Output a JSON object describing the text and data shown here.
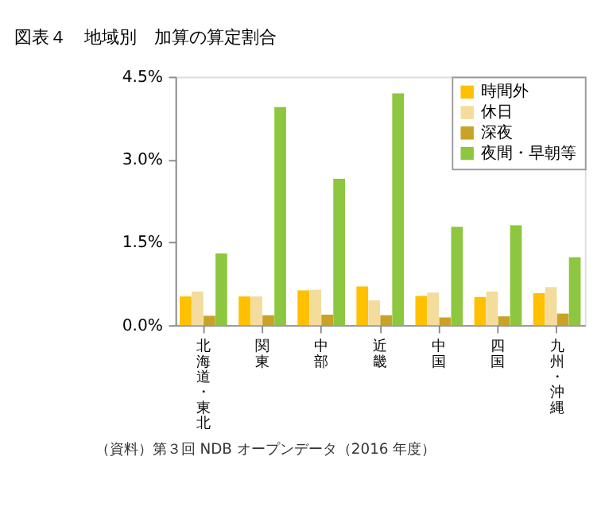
{
  "chart_data": {
    "type": "bar",
    "title": "図表４　地域別　加算の算定割合",
    "categories": [
      "北海道・東北",
      "関東",
      "中部",
      "近畿",
      "中国",
      "四国",
      "九州・沖縄"
    ],
    "series": [
      {
        "name": "時間外",
        "color": "#ffc000",
        "values": [
          0.52,
          0.52,
          0.63,
          0.7,
          0.53,
          0.51,
          0.58
        ]
      },
      {
        "name": "休日",
        "color": "#f3dc9c",
        "values": [
          0.61,
          0.52,
          0.64,
          0.45,
          0.59,
          0.61,
          0.69
        ]
      },
      {
        "name": "深夜",
        "color": "#c9a227",
        "values": [
          0.17,
          0.18,
          0.19,
          0.18,
          0.14,
          0.16,
          0.21
        ]
      },
      {
        "name": "夜間・早朝等",
        "color": "#8dc63f",
        "values": [
          1.3,
          3.95,
          2.65,
          4.2,
          1.78,
          1.81,
          1.23
        ]
      }
    ],
    "ylim": [
      0,
      4.5
    ],
    "yticks": [
      {
        "value": 0,
        "label": "0.0%"
      },
      {
        "value": 1.5,
        "label": "1.5%"
      },
      {
        "value": 3,
        "label": "3.0%"
      },
      {
        "value": 4.5,
        "label": "4.5%"
      }
    ],
    "grid": false,
    "legend": "top right",
    "annotations": [
      "（資料）第３回 NDB オープンデータ（2016 年度）"
    ]
  }
}
